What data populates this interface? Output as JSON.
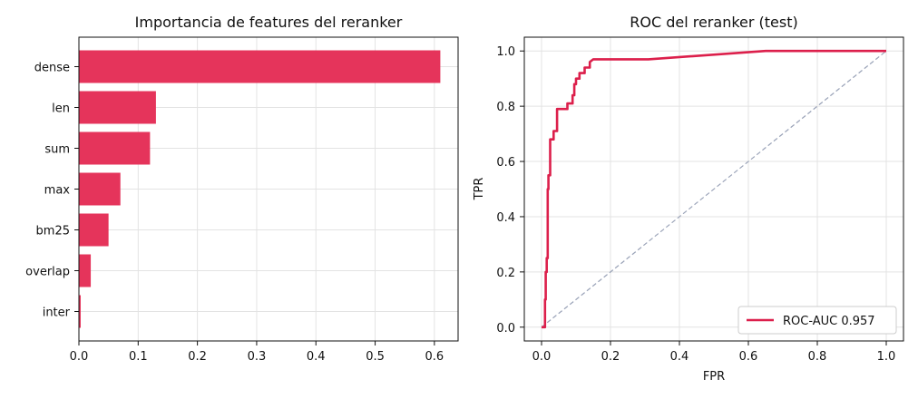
{
  "colors": {
    "bar": "#e5345b",
    "roc": "#dc1f4b",
    "diagonal": "#9aa3b8"
  },
  "chart_data": [
    {
      "type": "bar",
      "orientation": "horizontal",
      "title": "Importancia de features del reranker",
      "xlabel": "",
      "ylabel": "",
      "categories": [
        "dense",
        "len",
        "sum",
        "max",
        "bm25",
        "overlap",
        "inter"
      ],
      "values": [
        0.61,
        0.13,
        0.12,
        0.07,
        0.05,
        0.02,
        0.003
      ],
      "xlim": [
        0,
        0.64
      ],
      "xticks": [
        "0.0",
        "0.1",
        "0.2",
        "0.3",
        "0.4",
        "0.5",
        "0.6"
      ],
      "grid": true
    },
    {
      "type": "line",
      "title": "ROC del reranker (test)",
      "xlabel": "FPR",
      "ylabel": "TPR",
      "xlim": [
        -0.05,
        1.05
      ],
      "ylim": [
        -0.05,
        1.05
      ],
      "xticks": [
        "0.0",
        "0.2",
        "0.4",
        "0.6",
        "0.8",
        "1.0"
      ],
      "yticks": [
        "0.0",
        "0.2",
        "0.4",
        "0.6",
        "0.8",
        "1.0"
      ],
      "grid": true,
      "legend_position": "bottom-right",
      "series": [
        {
          "name": "ROC-AUC 0.957",
          "x": [
            0,
            0.01,
            0.01,
            0.012,
            0.012,
            0.015,
            0.015,
            0.018,
            0.018,
            0.02,
            0.02,
            0.025,
            0.025,
            0.035,
            0.035,
            0.045,
            0.045,
            0.075,
            0.075,
            0.09,
            0.09,
            0.095,
            0.095,
            0.1,
            0.1,
            0.11,
            0.11,
            0.125,
            0.125,
            0.14,
            0.14,
            0.15,
            0.31,
            0.65,
            1.0
          ],
          "y": [
            0,
            0,
            0.1,
            0.1,
            0.2,
            0.2,
            0.25,
            0.25,
            0.5,
            0.5,
            0.55,
            0.55,
            0.68,
            0.68,
            0.71,
            0.71,
            0.79,
            0.79,
            0.81,
            0.81,
            0.84,
            0.84,
            0.88,
            0.88,
            0.9,
            0.9,
            0.92,
            0.92,
            0.94,
            0.94,
            0.96,
            0.97,
            0.97,
            1.0,
            1.0
          ]
        }
      ],
      "reference_line": {
        "x": [
          0,
          1
        ],
        "y": [
          0,
          1
        ],
        "style": "dashed"
      }
    }
  ]
}
